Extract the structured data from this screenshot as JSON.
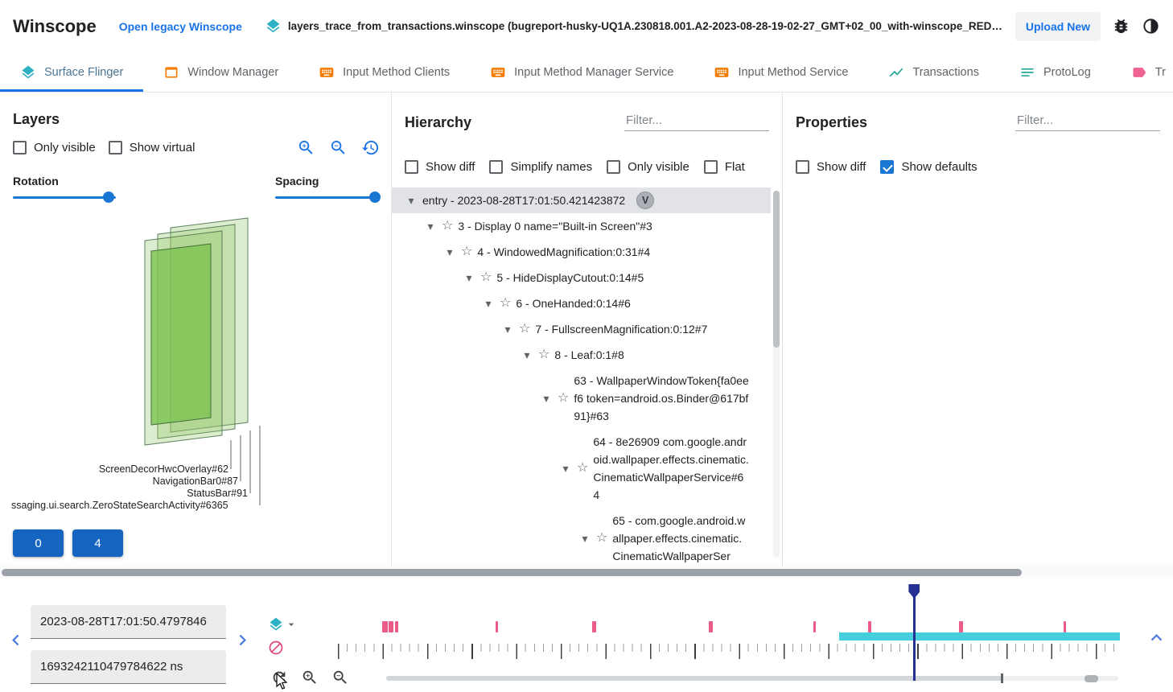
{
  "header": {
    "app_title": "Winscope",
    "legacy_link": "Open legacy Winscope",
    "trace_file": "layers_trace_from_transactions.winscope (bugreport-husky-UQ1A.230818.001.A2-2023-08-28-19-02-27_GMT+02_00_with-winscope_REDACTED.zip)",
    "upload_button": "Upload New"
  },
  "tabs": [
    {
      "label": "Surface Flinger",
      "icon": "layers",
      "icon_color": "#2eb0c5",
      "active": true
    },
    {
      "label": "Window Manager",
      "icon": "window",
      "icon_color": "#f57c00",
      "active": false
    },
    {
      "label": "Input Method Clients",
      "icon": "keyboard",
      "icon_color": "#f57c00",
      "active": false
    },
    {
      "label": "Input Method Manager Service",
      "icon": "keyboard",
      "icon_color": "#f57c00",
      "active": false
    },
    {
      "label": "Input Method Service",
      "icon": "keyboard",
      "icon_color": "#f57c00",
      "active": false
    },
    {
      "label": "Transactions",
      "icon": "chart",
      "icon_color": "#26a69a",
      "active": false
    },
    {
      "label": "ProtoLog",
      "icon": "list",
      "icon_color": "#26a69a",
      "active": false
    },
    {
      "label": "Tr",
      "icon": "tag",
      "icon_color": "#f06292",
      "active": false
    }
  ],
  "layers_panel": {
    "title": "Layers",
    "checkboxes": [
      {
        "label": "Only visible",
        "checked": false
      },
      {
        "label": "Show virtual",
        "checked": false
      }
    ],
    "rotation_label": "Rotation",
    "spacing_label": "Spacing",
    "rotation_pct": 93,
    "spacing_pct": 97,
    "layer_labels": [
      "ScreenDecorHwcOverlay#62",
      "NavigationBar0#87",
      "StatusBar#91",
      "ssaging.ui.search.ZeroStateSearchActivity#6365"
    ],
    "display_buttons": [
      "0",
      "4"
    ]
  },
  "hierarchy_panel": {
    "title": "Hierarchy",
    "filter_placeholder": "Filter...",
    "checkboxes": [
      {
        "label": "Show diff",
        "checked": false
      },
      {
        "label": "Simplify names",
        "checked": false
      },
      {
        "label": "Only visible",
        "checked": false
      },
      {
        "label": "Flat",
        "checked": false
      }
    ],
    "tree": [
      {
        "depth": 0,
        "label": "entry - 2023-08-28T17:01:50.421423872",
        "badge": "V",
        "selected": true,
        "star": false
      },
      {
        "depth": 1,
        "label": "3 - Display 0 name=\"Built-in Screen\"#3",
        "star": true
      },
      {
        "depth": 2,
        "label": "4 - WindowedMagnification:0:31#4",
        "star": true
      },
      {
        "depth": 3,
        "label": "5 - HideDisplayCutout:0:14#5",
        "star": true
      },
      {
        "depth": 4,
        "label": "6 - OneHanded:0:14#6",
        "star": true
      },
      {
        "depth": 5,
        "label": "7 - FullscreenMagnification:0:12#7",
        "star": true
      },
      {
        "depth": 6,
        "label": "8 - Leaf:0:1#8",
        "star": true
      },
      {
        "depth": 7,
        "label": "63 - WallpaperWindowToken{fa0eef6 token=android.os.Binder@617bf91}#63",
        "star": true
      },
      {
        "depth": 8,
        "label": "64 - 8e26909 com.google.android.wallpaper.effects.cinematic.CinematicWallpaperService#64",
        "star": true
      },
      {
        "depth": 9,
        "label": "65 - com.google.android.wallpaper.effects.cinematic.CinematicWallpaperSer",
        "star": true
      }
    ]
  },
  "properties_panel": {
    "title": "Properties",
    "filter_placeholder": "Filter...",
    "checkboxes": [
      {
        "label": "Show diff",
        "checked": false
      },
      {
        "label": "Show defaults",
        "checked": true
      }
    ]
  },
  "timeline": {
    "timestamp_human": "2023-08-28T17:01:50.4797846",
    "timestamp_ns": "1693242110479784622 ns",
    "marker_color": "#ea5c87",
    "coverage_color": "#45cede",
    "cursor_color": "#263092",
    "coverage_start_pct": 64.1,
    "cursor_pct": 73.7,
    "markers": [
      {
        "pct": 5.7,
        "w": 7
      },
      {
        "pct": 6.5,
        "w": 6
      },
      {
        "pct": 7.3,
        "w": 4
      },
      {
        "pct": 20.2,
        "w": 3
      },
      {
        "pct": 32.5,
        "w": 5
      },
      {
        "pct": 47.4,
        "w": 5
      },
      {
        "pct": 60.8,
        "w": 3
      },
      {
        "pct": 67.8,
        "w": 4
      },
      {
        "pct": 79.4,
        "w": 5
      },
      {
        "pct": 92.8,
        "w": 3
      }
    ]
  }
}
